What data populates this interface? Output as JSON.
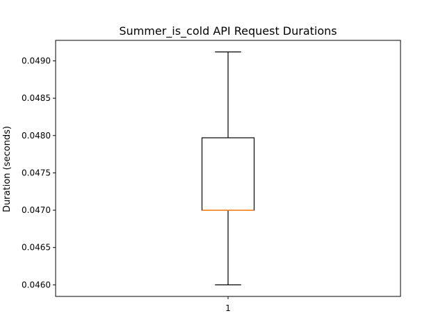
{
  "chart_data": {
    "type": "box",
    "title": "Summer_is_cold API Request Durations",
    "xlabel": "",
    "ylabel": "Duration (seconds)",
    "categories": [
      "1"
    ],
    "boxes": [
      {
        "category": "1",
        "whisker_low": 0.046,
        "q1": 0.047,
        "median": 0.047,
        "q3": 0.04797,
        "whisker_high": 0.04912
      }
    ],
    "ylim": [
      0.045845,
      0.049275
    ],
    "yticks": [
      "0.0460",
      "0.0465",
      "0.0470",
      "0.0475",
      "0.0480",
      "0.0485",
      "0.0490"
    ],
    "grid": false,
    "colors": {
      "box": "#000000",
      "median": "#ff7f0e",
      "whisker": "#000000"
    }
  }
}
